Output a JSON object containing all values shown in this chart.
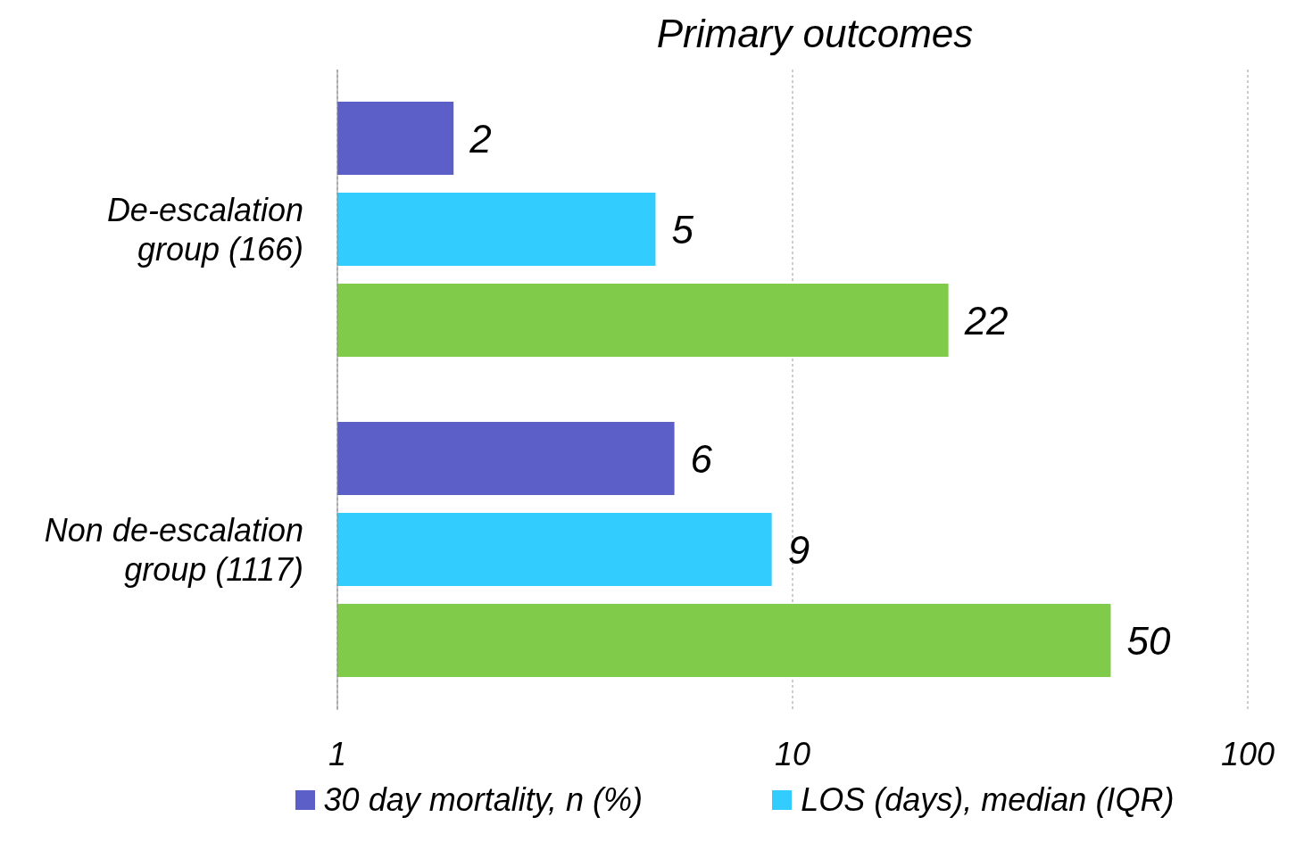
{
  "chart_data": {
    "type": "bar",
    "orientation": "horizontal",
    "title": "Primary outcomes",
    "categories": [
      "De-escalation group (166)",
      "Non de-escalation group (1117)"
    ],
    "series": [
      {
        "name": "30 day mortality, n (%)",
        "color": "#5b5fc7",
        "values": [
          1.8,
          5.5
        ],
        "value_labels": [
          "2",
          "6"
        ]
      },
      {
        "name": "LOS (days), median (IQR)",
        "color": "#33ccff",
        "values": [
          5,
          9
        ],
        "value_labels": [
          "5",
          "9"
        ]
      },
      {
        "color": "#80cc4a",
        "values": [
          22,
          50
        ],
        "value_labels": [
          "22",
          "50"
        ]
      }
    ],
    "log": "x",
    "xlim": [
      1,
      100
    ],
    "xticks": [
      1,
      10,
      100
    ],
    "grid": "x",
    "legend": "bottom"
  }
}
